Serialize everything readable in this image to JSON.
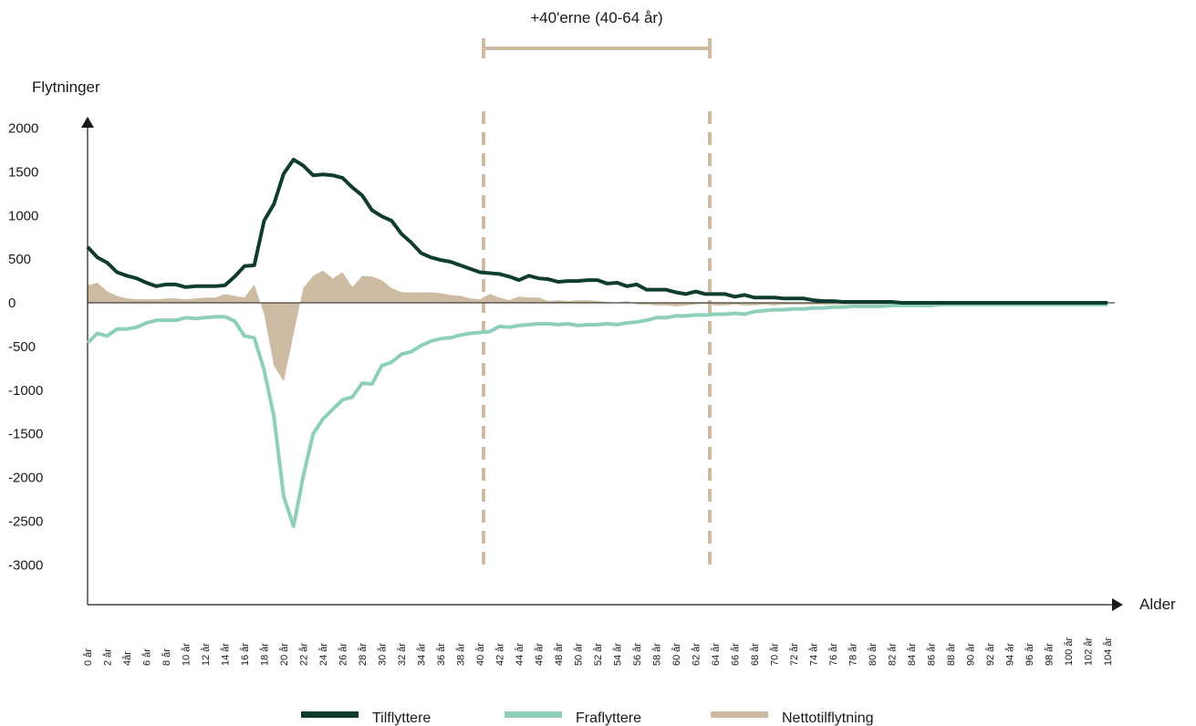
{
  "chart_data": {
    "type": "line",
    "ylabel": "Flytninger",
    "xlabel": "Alder",
    "ylim": [
      -3000,
      2000
    ],
    "yticks": [
      2000,
      1500,
      1000,
      500,
      0,
      -500,
      -1000,
      -1500,
      -2000,
      -2500,
      -3000
    ],
    "x_ages": [
      0,
      1,
      2,
      3,
      4,
      5,
      6,
      7,
      8,
      9,
      10,
      11,
      12,
      13,
      14,
      15,
      16,
      17,
      18,
      19,
      20,
      21,
      22,
      23,
      24,
      25,
      26,
      27,
      28,
      29,
      30,
      31,
      32,
      33,
      34,
      35,
      36,
      37,
      38,
      39,
      40,
      41,
      42,
      43,
      44,
      45,
      46,
      47,
      48,
      49,
      50,
      51,
      52,
      53,
      54,
      55,
      56,
      57,
      58,
      59,
      60,
      61,
      62,
      63,
      64,
      65,
      66,
      67,
      68,
      69,
      70,
      71,
      72,
      73,
      74,
      75,
      76,
      77,
      78,
      79,
      80,
      81,
      82,
      83,
      84,
      85,
      86,
      87,
      88,
      89,
      90,
      91,
      92,
      93,
      94,
      95,
      96,
      97,
      98,
      99,
      100,
      101,
      102,
      103,
      104
    ],
    "x_tick_labels": [
      "0 år",
      "2 år",
      "4år",
      "6 år",
      "8 år",
      "10 år",
      "12 år",
      "14 år",
      "16 år",
      "18 år",
      "20 år",
      "22 år",
      "24 år",
      "26 år",
      "28 år",
      "30 år",
      "32 år",
      "34 år",
      "36 år",
      "38 år",
      "40 år",
      "42 år",
      "44 år",
      "46 år",
      "48 år",
      "50 år",
      "52 år",
      "54 år",
      "56 år",
      "58 år",
      "60 år",
      "62 år",
      "64 år",
      "66 år",
      "68 år",
      "70 år",
      "72 år",
      "74 år",
      "76 år",
      "78 år",
      "80 år",
      "82 år",
      "84 år",
      "86 år",
      "88 år",
      "90 år",
      "92 år",
      "94 år",
      "96 år",
      "98 år",
      "100 år",
      "102 år",
      "104 år"
    ],
    "series": [
      {
        "name": "Tilflyttere",
        "color": "#0e3d30",
        "values": [
          640,
          520,
          460,
          350,
          310,
          280,
          230,
          190,
          210,
          210,
          180,
          190,
          190,
          190,
          200,
          300,
          420,
          430,
          940,
          1130,
          1480,
          1640,
          1570,
          1460,
          1470,
          1460,
          1430,
          1320,
          1230,
          1060,
          990,
          940,
          790,
          690,
          570,
          520,
          490,
          470,
          430,
          390,
          350,
          340,
          330,
          300,
          260,
          310,
          280,
          270,
          240,
          250,
          250,
          260,
          260,
          220,
          230,
          190,
          210,
          150,
          150,
          150,
          120,
          100,
          130,
          100,
          100,
          100,
          70,
          90,
          60,
          60,
          60,
          50,
          50,
          50,
          30,
          20,
          20,
          10,
          10,
          10,
          10,
          10,
          10,
          0,
          0,
          0,
          0,
          0,
          0,
          0,
          0,
          0,
          0,
          0,
          0,
          0,
          0,
          0,
          0,
          0,
          0,
          0,
          0,
          0,
          0
        ]
      },
      {
        "name": "Fraflyttere",
        "color": "#8dcfbb",
        "values": [
          -460,
          -350,
          -380,
          -300,
          -300,
          -280,
          -230,
          -200,
          -200,
          -200,
          -170,
          -180,
          -170,
          -160,
          -160,
          -210,
          -380,
          -400,
          -770,
          -1300,
          -2220,
          -2560,
          -1980,
          -1500,
          -1330,
          -1220,
          -1110,
          -1080,
          -920,
          -930,
          -720,
          -680,
          -590,
          -560,
          -490,
          -440,
          -410,
          -400,
          -370,
          -350,
          -340,
          -330,
          -270,
          -280,
          -260,
          -250,
          -240,
          -240,
          -250,
          -240,
          -260,
          -250,
          -250,
          -240,
          -250,
          -230,
          -220,
          -200,
          -170,
          -170,
          -150,
          -150,
          -140,
          -140,
          -130,
          -130,
          -120,
          -130,
          -100,
          -90,
          -80,
          -80,
          -70,
          -70,
          -60,
          -60,
          -50,
          -50,
          -40,
          -40,
          -40,
          -40,
          -30,
          -30,
          -30,
          -30,
          -30,
          -20,
          -20,
          -20,
          -20,
          -20,
          -20,
          -20,
          -20,
          -20,
          -20,
          -20,
          -20,
          -20,
          -20,
          -20,
          -20,
          -20,
          -20
        ]
      },
      {
        "name": "Nettotilflytning",
        "color": "#cdbba4",
        "values": [
          200,
          230,
          130,
          80,
          50,
          40,
          40,
          40,
          50,
          50,
          40,
          50,
          60,
          60,
          100,
          80,
          60,
          210,
          -130,
          -720,
          -900,
          -360,
          170,
          310,
          370,
          280,
          350,
          180,
          310,
          300,
          260,
          170,
          120,
          120,
          120,
          120,
          110,
          90,
          80,
          50,
          40,
          100,
          60,
          30,
          70,
          60,
          60,
          20,
          30,
          20,
          30,
          30,
          20,
          10,
          0,
          20,
          -20,
          -20,
          -30,
          -30,
          -40,
          -30,
          -20,
          -10,
          -30,
          -30,
          -20,
          -30,
          -30,
          -20,
          -30,
          -20,
          -20,
          -20,
          -20,
          -20,
          -20,
          -20,
          -20,
          -20,
          -20,
          -20,
          -20,
          -20,
          -20,
          -20,
          -20,
          -20,
          -20,
          -20,
          -20,
          -20,
          -20,
          -20,
          -20,
          -20,
          -20,
          -20,
          -20,
          -20,
          -20,
          -20,
          -20,
          -20,
          -20
        ]
      }
    ],
    "highlight_band": {
      "label": "+40'erne (40-64 år)",
      "start": 40,
      "end": 64,
      "color": "#cdbba4"
    },
    "legend": {
      "position": "bottom"
    },
    "grid": false
  }
}
